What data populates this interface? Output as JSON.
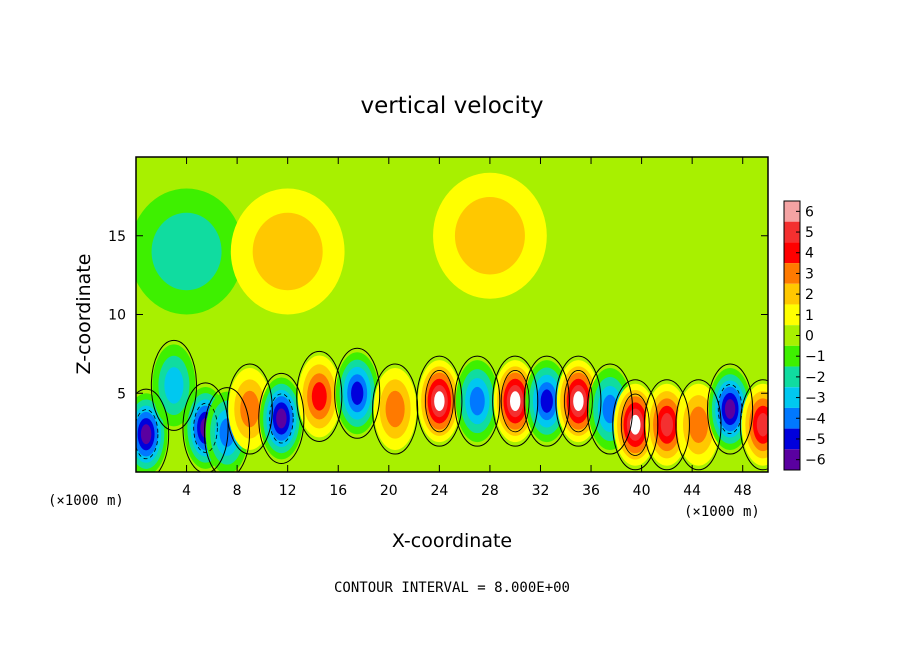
{
  "chart_data": {
    "type": "heatmap",
    "title": "vertical velocity",
    "xlabel": "X-coordinate",
    "ylabel": "Z-coordinate",
    "x_unit_left": "(×1000 m)",
    "x_unit_right": "(×1000 m)",
    "xlim": [
      0,
      50
    ],
    "ylim": [
      0,
      20
    ],
    "x_ticks": [
      4,
      8,
      12,
      16,
      20,
      24,
      28,
      32,
      36,
      40,
      44,
      48
    ],
    "y_ticks": [
      5,
      10,
      15
    ],
    "contour_note": "CONTOUR INTERVAL = 8.000E+00",
    "colorbar": {
      "ticks": [
        6,
        5,
        4,
        3,
        2,
        1,
        0,
        -1,
        -2,
        -3,
        -4,
        -5,
        -6
      ],
      "tick_labels": [
        "6",
        "5",
        "4",
        "3",
        "2",
        "1",
        "0",
        "−1",
        "−2",
        "−3",
        "−4",
        "−5",
        "−6"
      ],
      "colors": [
        "#f4a3a3",
        "#f43030",
        "#ff0000",
        "#ff7a00",
        "#ffc800",
        "#ffff00",
        "#a8f000",
        "#3ef000",
        "#10dca0",
        "#00c8f0",
        "#0078ff",
        "#0000dc",
        "#5a00a0"
      ]
    },
    "background_value": 0.5,
    "features": [
      {
        "x": 0.8,
        "z": 2.4,
        "w": -6
      },
      {
        "x": 3.0,
        "z": 5.5,
        "w": -3
      },
      {
        "x": 5.5,
        "z": 2.8,
        "w": -6
      },
      {
        "x": 7.2,
        "z": 2.5,
        "w": -4
      },
      {
        "x": 9.0,
        "z": 4.0,
        "w": 3
      },
      {
        "x": 11.5,
        "z": 3.4,
        "w": -6
      },
      {
        "x": 14.5,
        "z": 4.8,
        "w": 4
      },
      {
        "x": 17.5,
        "z": 5.0,
        "w": -5
      },
      {
        "x": 20.5,
        "z": 4.0,
        "w": 3
      },
      {
        "x": 24.0,
        "z": 4.5,
        "w": 6
      },
      {
        "x": 27.0,
        "z": 4.5,
        "w": -4
      },
      {
        "x": 30.0,
        "z": 4.5,
        "w": 6
      },
      {
        "x": 32.5,
        "z": 4.5,
        "w": -5
      },
      {
        "x": 35.0,
        "z": 4.5,
        "w": 6
      },
      {
        "x": 37.5,
        "z": 4.0,
        "w": -4
      },
      {
        "x": 39.5,
        "z": 3.0,
        "w": 6
      },
      {
        "x": 42.0,
        "z": 3.0,
        "w": 5
      },
      {
        "x": 44.5,
        "z": 3.0,
        "w": 3
      },
      {
        "x": 47.0,
        "z": 4.0,
        "w": -6
      },
      {
        "x": 49.6,
        "z": 3.0,
        "w": 5
      },
      {
        "x": 4.0,
        "z": 14.0,
        "w": -2
      },
      {
        "x": 12.0,
        "z": 14.0,
        "w": 1.5
      },
      {
        "x": 28.0,
        "z": 15.0,
        "w": 1.5
      }
    ]
  }
}
